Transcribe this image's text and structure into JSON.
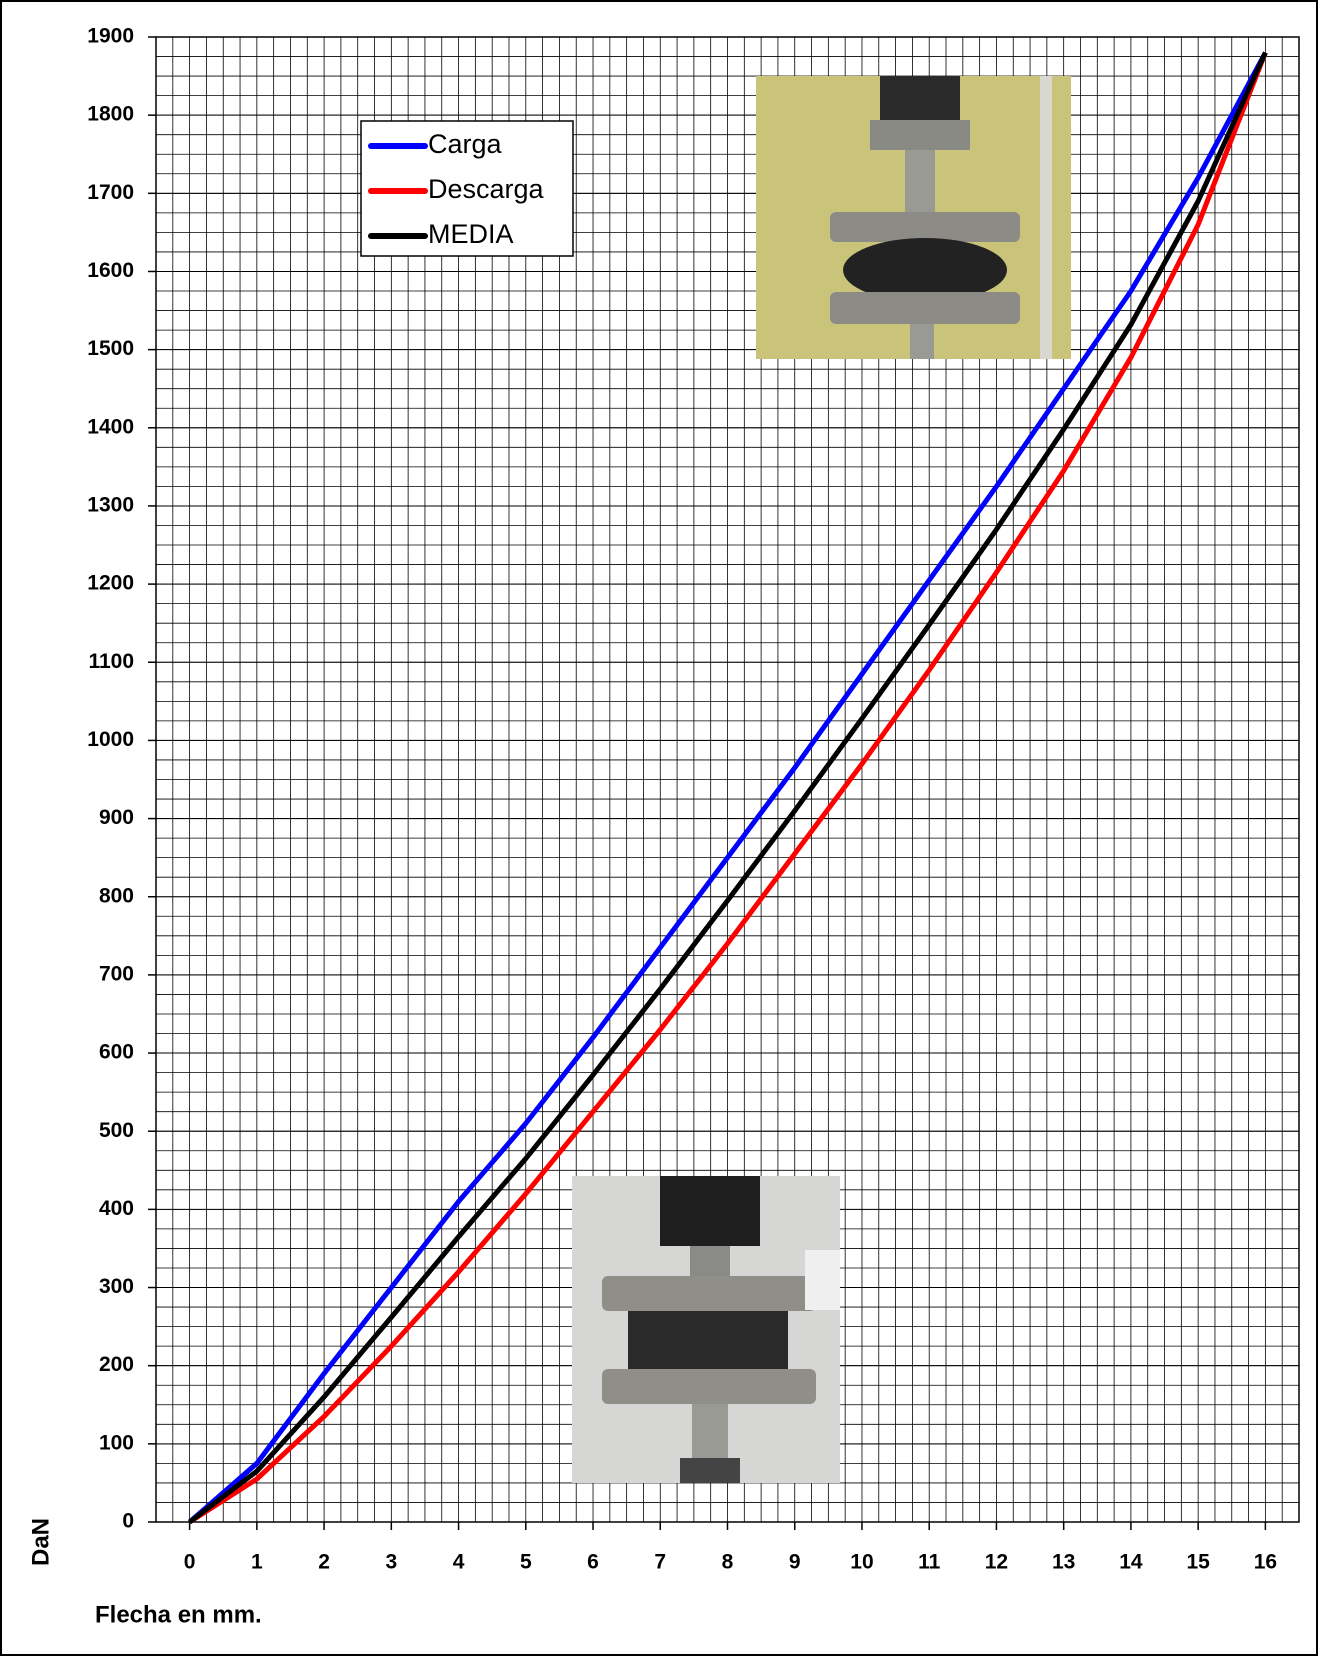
{
  "chart_data": {
    "type": "line",
    "x_label": "Flecha en mm.",
    "y_label": "DaN",
    "x": [
      0,
      1,
      2,
      3,
      4,
      5,
      6,
      7,
      8,
      9,
      10,
      11,
      12,
      13,
      14,
      15,
      16
    ],
    "series": [
      {
        "name": "Carga",
        "color": "#0000ff",
        "values": [
          0,
          75,
          190,
          300,
          410,
          510,
          620,
          735,
          850,
          965,
          1085,
          1205,
          1325,
          1450,
          1575,
          1720,
          1880
        ]
      },
      {
        "name": "Descarga",
        "color": "#ff0000",
        "values": [
          0,
          55,
          135,
          225,
          320,
          420,
          525,
          630,
          740,
          855,
          970,
          1090,
          1215,
          1345,
          1490,
          1660,
          1880
        ]
      },
      {
        "name": "MEDIA",
        "color": "#000000",
        "values": [
          0,
          65,
          160,
          262,
          365,
          465,
          572,
          682,
          795,
          910,
          1028,
          1148,
          1270,
          1398,
          1532,
          1690,
          1880
        ]
      }
    ],
    "xlim": [
      -0.5,
      16.5
    ],
    "xticks": [
      0,
      1,
      2,
      3,
      4,
      5,
      6,
      7,
      8,
      9,
      10,
      11,
      12,
      13,
      14,
      15,
      16
    ],
    "ylim": [
      0,
      1900
    ],
    "yticks": [
      0,
      100,
      200,
      300,
      400,
      500,
      600,
      700,
      800,
      900,
      1000,
      1100,
      1200,
      1300,
      1400,
      1500,
      1600,
      1700,
      1800,
      1900
    ],
    "grid": true
  }
}
